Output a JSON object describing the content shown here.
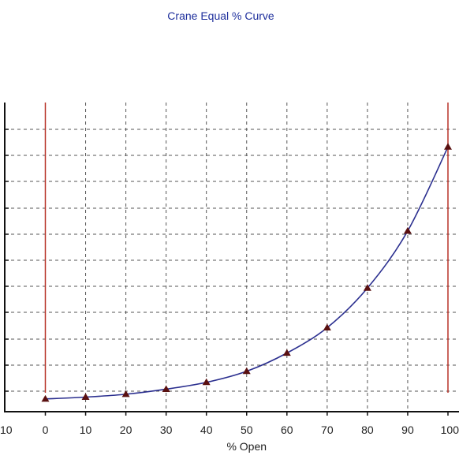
{
  "chart_data": {
    "type": "line",
    "title": "Crane Equal % Curve",
    "xlabel": "% Open",
    "ylabel": "",
    "xlim": [
      -10,
      100
    ],
    "x_ticks": [
      "10",
      "0",
      "10",
      "20",
      "30",
      "40",
      "50",
      "60",
      "70",
      "80",
      "90",
      "100"
    ],
    "grid": true,
    "series": [
      {
        "color": "#2b2f8f",
        "marker": "triangle",
        "marker_color": "#5a1010",
        "x": [
          0,
          10,
          20,
          30,
          40,
          50,
          60,
          70,
          80,
          90,
          100
        ],
        "y": [
          0.3,
          0.42,
          0.6,
          0.92,
          1.35,
          2.05,
          3.2,
          4.8,
          7.3,
          10.9,
          16.2
        ]
      }
    ],
    "y_range": [
      -0.5,
      19.0
    ],
    "reference_lines": [
      {
        "x": 0,
        "color": "#b83228"
      },
      {
        "x": 100,
        "color": "#b83228"
      }
    ]
  }
}
